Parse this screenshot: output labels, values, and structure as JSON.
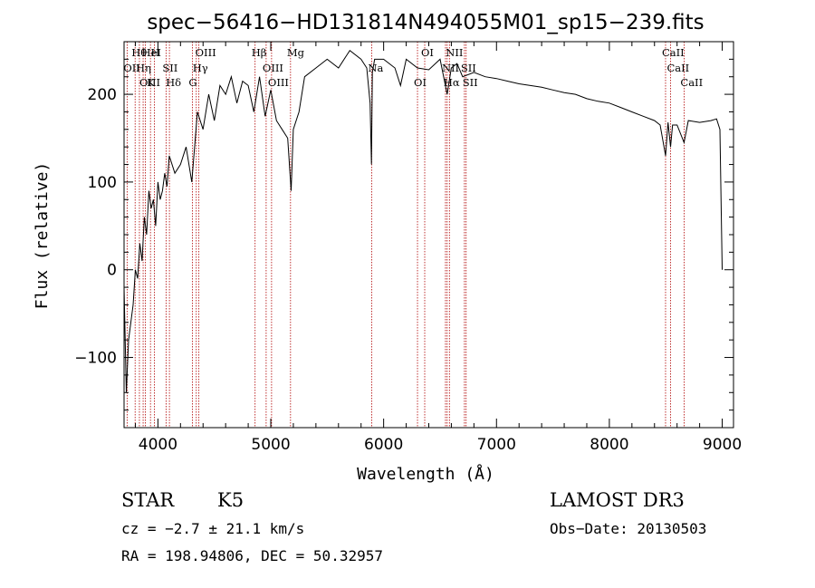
{
  "chart_data": {
    "type": "line",
    "title": "spec−56416−HD131814N494055M01_sp15−239.fits",
    "xlabel": "Wavelength (Å)",
    "ylabel": "Flux (relative)",
    "xlim": [
      3700,
      9100
    ],
    "ylim": [
      -180,
      260
    ],
    "xticks": [
      4000,
      5000,
      6000,
      7000,
      8000,
      9000
    ],
    "yticks": [
      -100,
      0,
      100,
      200
    ],
    "ytick_labels": [
      "−100",
      "0",
      "100",
      "200"
    ],
    "grid": false,
    "series": [
      {
        "name": "spectrum",
        "x": [
          3700,
          3720,
          3740,
          3760,
          3780,
          3800,
          3820,
          3840,
          3860,
          3880,
          3900,
          3920,
          3940,
          3960,
          3980,
          4000,
          4020,
          4040,
          4060,
          4080,
          4100,
          4150,
          4200,
          4250,
          4300,
          4350,
          4400,
          4450,
          4500,
          4550,
          4600,
          4650,
          4700,
          4750,
          4800,
          4850,
          4900,
          4950,
          5000,
          5050,
          5100,
          5150,
          5180,
          5200,
          5250,
          5300,
          5400,
          5500,
          5600,
          5700,
          5800,
          5850,
          5880,
          5892,
          5900,
          5920,
          6000,
          6100,
          6150,
          6200,
          6300,
          6400,
          6500,
          6563,
          6600,
          6650,
          6700,
          6800,
          6900,
          7000,
          7100,
          7200,
          7300,
          7400,
          7500,
          7600,
          7700,
          7800,
          7900,
          8000,
          8100,
          8200,
          8300,
          8400,
          8450,
          8498,
          8520,
          8542,
          8560,
          8600,
          8662,
          8700,
          8800,
          8900,
          8950,
          8980,
          9000
        ],
        "values": [
          -20,
          -140,
          -80,
          -60,
          -40,
          0,
          -10,
          30,
          10,
          60,
          40,
          90,
          70,
          80,
          50,
          100,
          80,
          90,
          110,
          95,
          130,
          110,
          120,
          140,
          100,
          180,
          160,
          200,
          170,
          210,
          200,
          220,
          190,
          215,
          210,
          180,
          220,
          175,
          205,
          170,
          160,
          150,
          90,
          160,
          180,
          220,
          230,
          240,
          230,
          250,
          240,
          230,
          190,
          120,
          225,
          240,
          240,
          230,
          210,
          240,
          230,
          228,
          240,
          200,
          230,
          235,
          220,
          225,
          220,
          218,
          215,
          212,
          210,
          208,
          205,
          202,
          200,
          195,
          192,
          190,
          185,
          180,
          175,
          170,
          165,
          130,
          168,
          140,
          165,
          165,
          145,
          170,
          168,
          170,
          172,
          160,
          0
        ]
      }
    ],
    "spectral_lines": [
      {
        "name": "Hθ",
        "wavelength": 3798
      },
      {
        "name": "OII",
        "wavelength": 3727
      },
      {
        "name": "OIII",
        "wavelength": 3869
      },
      {
        "name": "HeI",
        "wavelength": 3889
      },
      {
        "name": "Hη",
        "wavelength": 3836
      },
      {
        "name": "K",
        "wavelength": 3934
      },
      {
        "name": "H",
        "wavelength": 3969
      },
      {
        "name": "SII",
        "wavelength": 4072
      },
      {
        "name": "Hδ",
        "wavelength": 4102
      },
      {
        "name": "OIII",
        "wavelength": 4363
      },
      {
        "name": "Hγ",
        "wavelength": 4340
      },
      {
        "name": "G",
        "wavelength": 4305
      },
      {
        "name": "Hβ",
        "wavelength": 4861
      },
      {
        "name": "OIII",
        "wavelength": 4959
      },
      {
        "name": "OIII",
        "wavelength": 5007
      },
      {
        "name": "Mg",
        "wavelength": 5175
      },
      {
        "name": "Na",
        "wavelength": 5894
      },
      {
        "name": "OI",
        "wavelength": 6300
      },
      {
        "name": "OI",
        "wavelength": 6364
      },
      {
        "name": "NII",
        "wavelength": 6548
      },
      {
        "name": "Hα",
        "wavelength": 6563
      },
      {
        "name": "NII",
        "wavelength": 6583
      },
      {
        "name": "SII",
        "wavelength": 6716
      },
      {
        "name": "SII",
        "wavelength": 6731
      },
      {
        "name": "CaII",
        "wavelength": 8498
      },
      {
        "name": "CaII",
        "wavelength": 8542
      },
      {
        "name": "CaII",
        "wavelength": 8662
      }
    ]
  },
  "info": {
    "object_class": "STAR",
    "subclass": "K5",
    "survey": "LAMOST DR3",
    "redshift": "cz = −2.7 ± 21.1 km/s",
    "obs_date": "Obs−Date: 20130503",
    "coords": "RA = 198.94806, DEC =  50.32957"
  }
}
